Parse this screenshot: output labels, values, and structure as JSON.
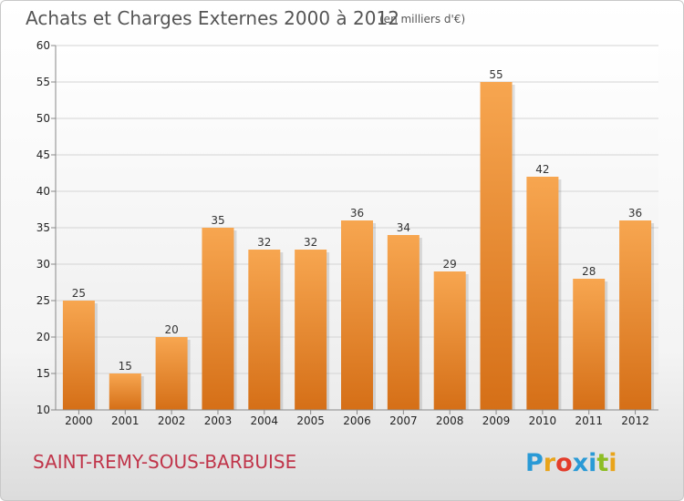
{
  "header": {
    "title": "Achats et Charges Externes 2000 à 2012",
    "subtitle": "(en milliers d'€)"
  },
  "footer": {
    "place": "SAINT-REMY-SOUS-BARBUISE",
    "logo": "Proxiti",
    "logo_colors": [
      "#2a9ad6",
      "#e9a41a",
      "#e33d2b",
      "#2a9ad6",
      "#2a9ad6",
      "#8dbd24",
      "#e9a41a"
    ]
  },
  "chart_data": {
    "type": "bar",
    "categories": [
      "2000",
      "2001",
      "2002",
      "2003",
      "2004",
      "2005",
      "2006",
      "2007",
      "2008",
      "2009",
      "2010",
      "2011",
      "2012"
    ],
    "values": [
      25,
      15,
      20,
      35,
      32,
      32,
      36,
      34,
      29,
      55,
      42,
      28,
      36
    ],
    "ylim": [
      10,
      60
    ],
    "yticks": [
      10,
      15,
      20,
      25,
      30,
      35,
      40,
      45,
      50,
      55,
      60
    ],
    "grid": true,
    "bar_color_top": "#f7a650",
    "bar_color_bottom": "#d56f17"
  }
}
